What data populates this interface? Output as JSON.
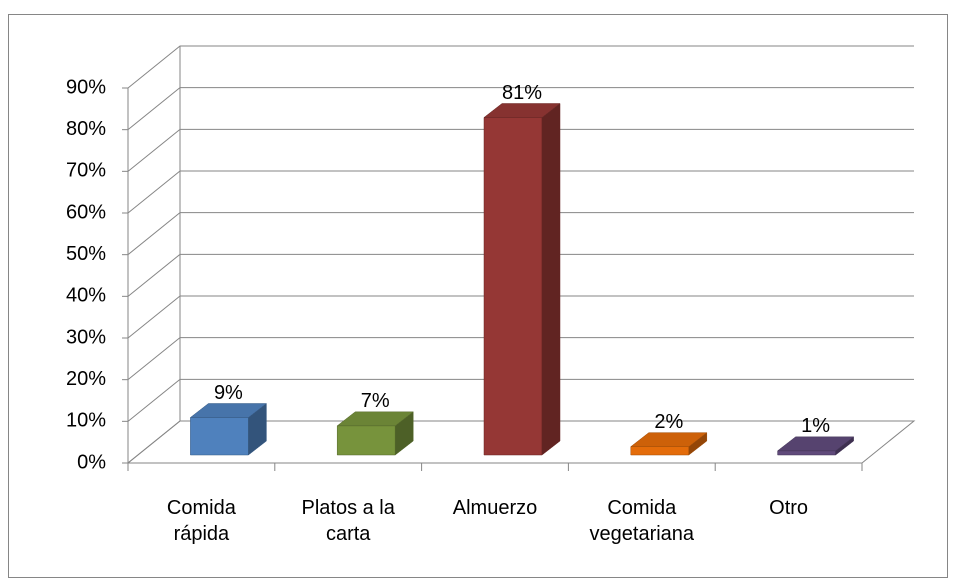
{
  "chart_data": {
    "type": "bar3d",
    "categories": [
      "Comida rápida",
      "Platos a la carta",
      "Almuerzo",
      "Comida vegetariana",
      "Otro"
    ],
    "values": [
      9,
      7,
      81,
      2,
      1
    ],
    "value_labels": [
      "9%",
      "7%",
      "81%",
      "2%",
      "1%"
    ],
    "colors": [
      "#4f81bd",
      "#77933c",
      "#953735",
      "#e46c0a",
      "#604a7b"
    ],
    "ylim": [
      0,
      90
    ],
    "yticks": [
      {
        "value": 0,
        "label": "0%"
      },
      {
        "value": 10,
        "label": "10%"
      },
      {
        "value": 20,
        "label": "20%"
      },
      {
        "value": 30,
        "label": "30%"
      },
      {
        "value": 40,
        "label": "40%"
      },
      {
        "value": 50,
        "label": "50%"
      },
      {
        "value": 60,
        "label": "60%"
      },
      {
        "value": 70,
        "label": "70%"
      },
      {
        "value": 80,
        "label": "80%"
      },
      {
        "value": 90,
        "label": "90%"
      }
    ],
    "grid": true
  }
}
